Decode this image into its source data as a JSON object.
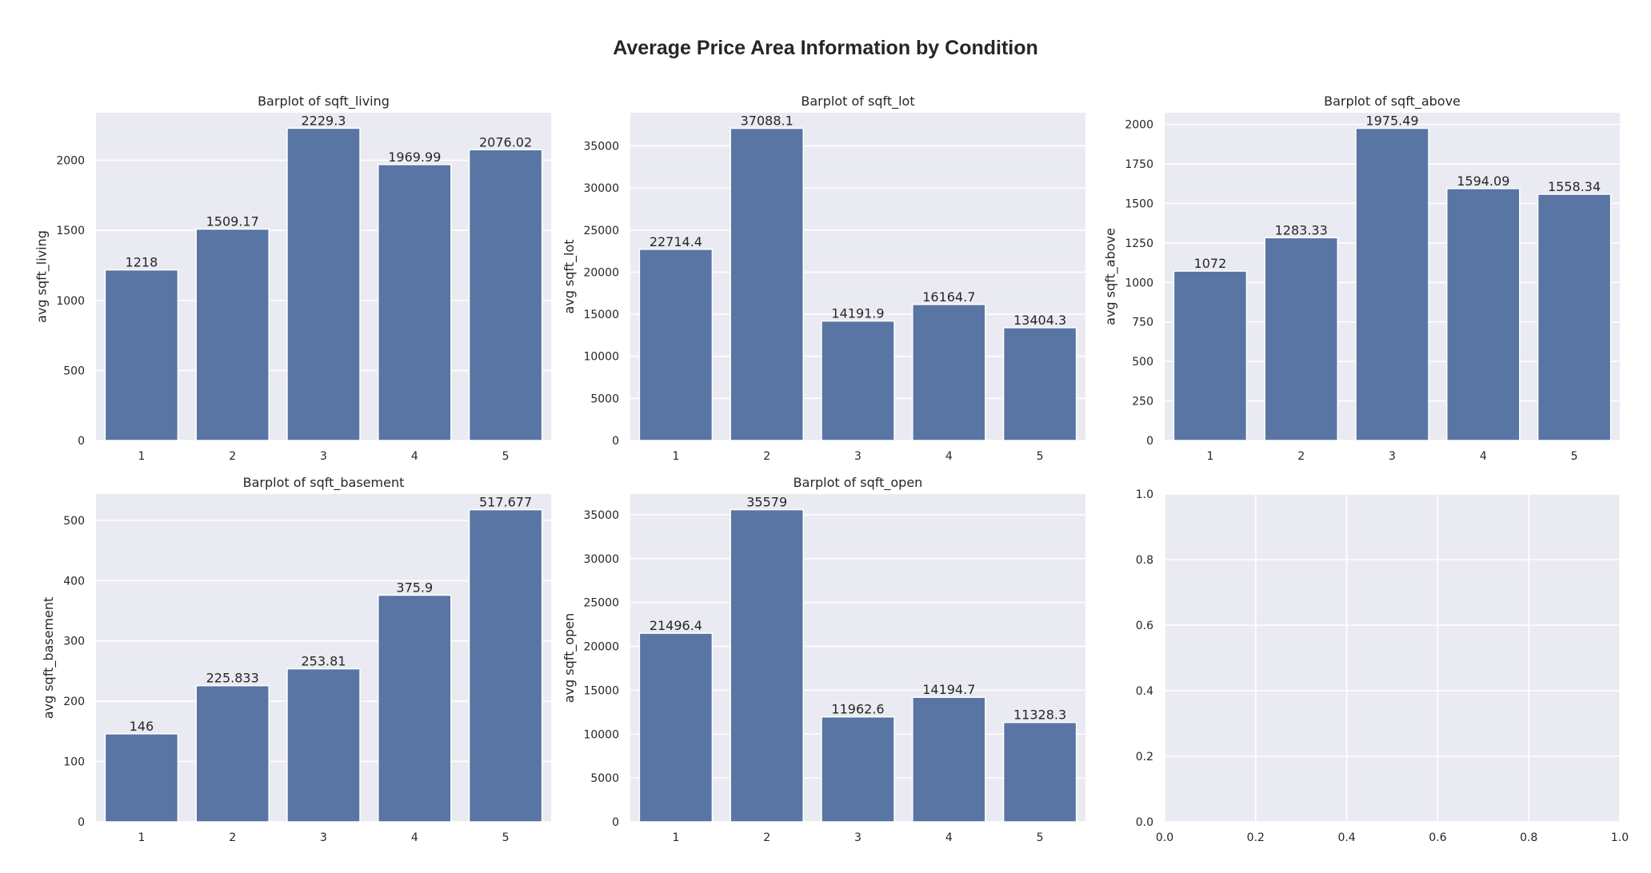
{
  "figure": {
    "title": "Average Price Area Information by Condition"
  },
  "chart_data": [
    {
      "type": "bar",
      "title": "Barplot of sqft_living",
      "xlabel": "",
      "ylabel": "avg sqft_living",
      "categories": [
        "1",
        "2",
        "3",
        "4",
        "5"
      ],
      "values": [
        1218,
        1509.17,
        2229.3,
        1969.99,
        2076.02
      ],
      "value_labels": [
        "1218",
        "1509.17",
        "2229.3",
        "1969.99",
        "2076.02"
      ],
      "ylim": [
        0,
        2340
      ],
      "yticks": [
        0,
        500,
        1000,
        1500,
        2000
      ],
      "grid": true
    },
    {
      "type": "bar",
      "title": "Barplot of sqft_lot",
      "xlabel": "",
      "ylabel": "avg sqft_lot",
      "categories": [
        "1",
        "2",
        "3",
        "4",
        "5"
      ],
      "values": [
        22714.4,
        37088.1,
        14191.9,
        16164.7,
        13404.3
      ],
      "value_labels": [
        "22714.4",
        "37088.1",
        "14191.9",
        "16164.7",
        "13404.3"
      ],
      "ylim": [
        0,
        38940
      ],
      "yticks": [
        0,
        5000,
        10000,
        15000,
        20000,
        25000,
        30000,
        35000
      ],
      "grid": true
    },
    {
      "type": "bar",
      "title": "Barplot of sqft_above",
      "xlabel": "",
      "ylabel": "avg sqft_above",
      "categories": [
        "1",
        "2",
        "3",
        "4",
        "5"
      ],
      "values": [
        1072,
        1283.33,
        1975.49,
        1594.09,
        1558.34
      ],
      "value_labels": [
        "1072",
        "1283.33",
        "1975.49",
        "1594.09",
        "1558.34"
      ],
      "ylim": [
        0,
        2074
      ],
      "yticks": [
        0,
        250,
        500,
        750,
        1000,
        1250,
        1500,
        1750,
        2000
      ],
      "grid": true
    },
    {
      "type": "bar",
      "title": "Barplot of sqft_basement",
      "xlabel": "",
      "ylabel": "avg sqft_basement",
      "categories": [
        "1",
        "2",
        "3",
        "4",
        "5"
      ],
      "values": [
        146,
        225.833,
        253.81,
        375.9,
        517.677
      ],
      "value_labels": [
        "146",
        "225.833",
        "253.81",
        "375.9",
        "517.677"
      ],
      "ylim": [
        0,
        543.6
      ],
      "yticks": [
        0,
        100,
        200,
        300,
        400,
        500
      ],
      "grid": true
    },
    {
      "type": "bar",
      "title": "Barplot of sqft_open",
      "xlabel": "",
      "ylabel": "avg sqft_open",
      "categories": [
        "1",
        "2",
        "3",
        "4",
        "5"
      ],
      "values": [
        21496.4,
        35579,
        11962.6,
        14194.7,
        11328.3
      ],
      "value_labels": [
        "21496.4",
        "35579",
        "11962.6",
        "14194.7",
        "11328.3"
      ],
      "ylim": [
        0,
        37358
      ],
      "yticks": [
        0,
        5000,
        10000,
        15000,
        20000,
        25000,
        30000,
        35000
      ],
      "grid": true
    },
    {
      "type": "bar",
      "title": "",
      "xlabel": "",
      "ylabel": "",
      "categories": [],
      "values": [],
      "xlim": [
        0,
        1
      ],
      "ylim": [
        0,
        1
      ],
      "xticks": [
        "0.0",
        "0.2",
        "0.4",
        "0.6",
        "0.8",
        "1.0"
      ],
      "yticks": [
        "0.0",
        "0.2",
        "0.4",
        "0.6",
        "0.8",
        "1.0"
      ],
      "grid": true
    }
  ]
}
